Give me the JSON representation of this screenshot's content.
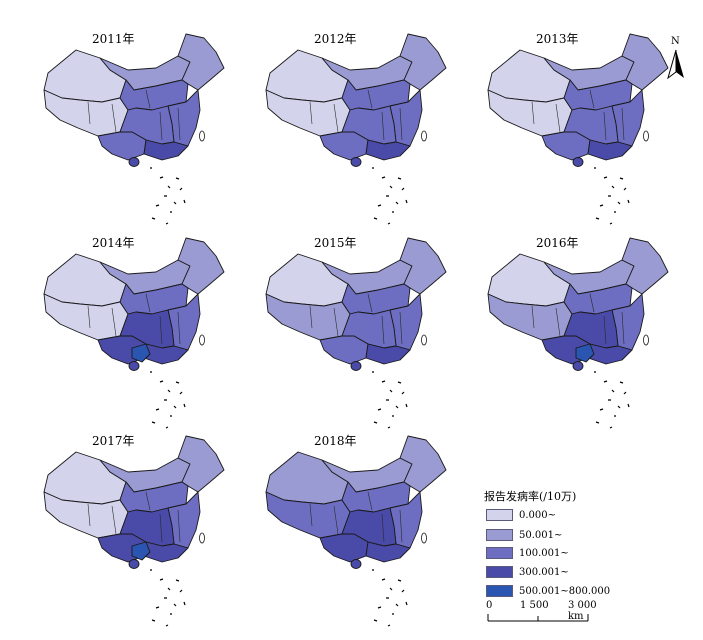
{
  "panels": [
    {
      "year": "2011年",
      "levels": {
        "NW": 0,
        "TB": 0,
        "IM": 1,
        "NE": 1,
        "N": 2,
        "C": 2,
        "SW": 2,
        "S": 3,
        "E": 2,
        "HN": 3
      }
    },
    {
      "year": "2012年",
      "levels": {
        "NW": 0,
        "TB": 0,
        "IM": 1,
        "NE": 1,
        "N": 2,
        "C": 2,
        "SW": 2,
        "S": 3,
        "E": 2,
        "HN": 3
      }
    },
    {
      "year": "2013年",
      "levels": {
        "NW": 0,
        "TB": 0,
        "IM": 1,
        "NE": 1,
        "N": 2,
        "C": 2,
        "SW": 2,
        "S": 3,
        "E": 2,
        "HN": 3
      }
    },
    {
      "year": "2014年",
      "levels": {
        "NW": 0,
        "TB": 0,
        "IM": 1,
        "NE": 1,
        "N": 2,
        "C": 3,
        "SW": 3,
        "S": 3,
        "E": 2,
        "HN": 3,
        "GX": 4
      }
    },
    {
      "year": "2015年",
      "levels": {
        "NW": 0,
        "TB": 1,
        "IM": 1,
        "NE": 1,
        "N": 2,
        "C": 2,
        "SW": 2,
        "S": 3,
        "E": 2,
        "HN": 3
      }
    },
    {
      "year": "2016年",
      "levels": {
        "NW": 0,
        "TB": 1,
        "IM": 1,
        "NE": 1,
        "N": 2,
        "C": 3,
        "SW": 3,
        "S": 3,
        "E": 2,
        "HN": 3,
        "GX": 4
      }
    },
    {
      "year": "2017年",
      "levels": {
        "NW": 0,
        "TB": 0,
        "IM": 1,
        "NE": 1,
        "N": 2,
        "C": 3,
        "SW": 3,
        "S": 3,
        "E": 2,
        "HN": 3,
        "GX": 4
      }
    },
    {
      "year": "2018年",
      "levels": {
        "NW": 1,
        "TB": 2,
        "IM": 1,
        "NE": 1,
        "N": 2,
        "C": 3,
        "SW": 3,
        "S": 3,
        "E": 2,
        "HN": 3
      }
    }
  ],
  "north_arrow": {
    "label": "N"
  },
  "legend": {
    "title": "报告发病率(/10万)",
    "classes": [
      {
        "label": "0.000~",
        "color": "#d3d4ec"
      },
      {
        "label": "50.001~",
        "color": "#9b9bd3"
      },
      {
        "label": "100.001~",
        "color": "#6d6dc2"
      },
      {
        "label": "300.001~",
        "color": "#4a4aa8"
      },
      {
        "label": "500.001~800.000",
        "color": "#2a55b0"
      }
    ]
  },
  "scale": {
    "ticks": [
      "0",
      "1 500",
      "3 000 km"
    ]
  }
}
